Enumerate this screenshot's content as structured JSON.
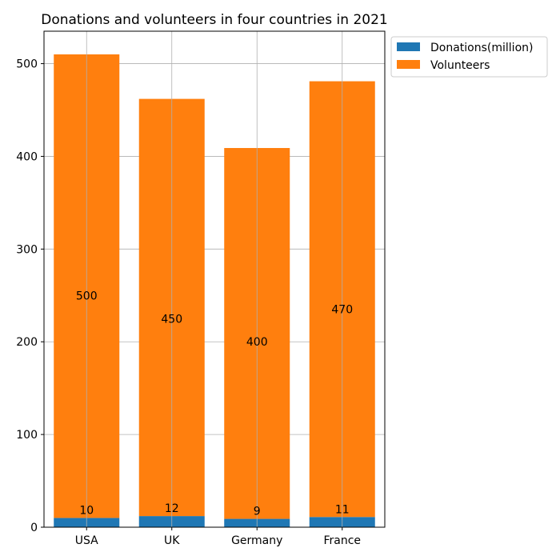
{
  "chart_data": {
    "type": "bar",
    "stacked": true,
    "title": "Donations and volunteers in four countries in 2021",
    "categories": [
      "USA",
      "UK",
      "Germany",
      "France"
    ],
    "series": [
      {
        "name": "Donations(million)",
        "values": [
          10,
          12,
          9,
          11
        ],
        "color": "#1f77b4"
      },
      {
        "name": "Volunteers",
        "values": [
          500,
          450,
          400,
          470
        ],
        "color": "#ff7f0e"
      }
    ],
    "ylim": [
      0,
      535
    ],
    "yticks": [
      0,
      100,
      200,
      300,
      400,
      500
    ],
    "grid": true,
    "legend_position": "outside-top-right"
  }
}
